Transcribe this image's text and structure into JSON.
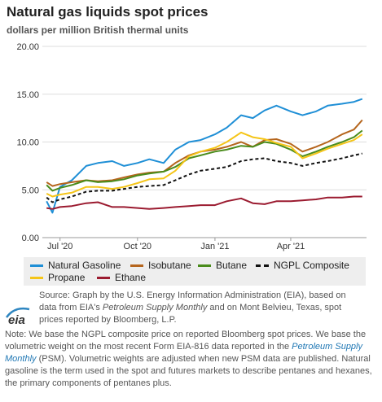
{
  "title": "Natural gas liquids spot prices",
  "subtitle": "dollars per million British thermal units",
  "chart_data": {
    "type": "line",
    "ylim": [
      0,
      20
    ],
    "yticks": [
      "0.00",
      "5.00",
      "10.00",
      "15.00",
      "20.00"
    ],
    "xticks": [
      {
        "label": "Jul '20",
        "x": "2020-07-01"
      },
      {
        "label": "Oct '20",
        "x": "2020-10-01"
      },
      {
        "label": "Jan '21",
        "x": "2021-01-01"
      },
      {
        "label": "Apr '21",
        "x": "2021-04-01"
      }
    ],
    "grid": "horizontal",
    "legend_position": "bottom",
    "series": [
      {
        "name": "Natural Gasoline",
        "color": "#1f8fd6",
        "dash": "solid",
        "points": [
          [
            "2020-06-15",
            3.8
          ],
          [
            "2020-06-22",
            2.6
          ],
          [
            "2020-07-01",
            5.3
          ],
          [
            "2020-07-15",
            6.0
          ],
          [
            "2020-08-01",
            7.5
          ],
          [
            "2020-08-15",
            7.8
          ],
          [
            "2020-09-01",
            8.0
          ],
          [
            "2020-09-15",
            7.5
          ],
          [
            "2020-10-01",
            7.8
          ],
          [
            "2020-10-15",
            8.2
          ],
          [
            "2020-11-01",
            7.8
          ],
          [
            "2020-11-15",
            9.2
          ],
          [
            "2020-12-01",
            10.0
          ],
          [
            "2020-12-15",
            10.2
          ],
          [
            "2021-01-01",
            10.8
          ],
          [
            "2021-01-15",
            11.5
          ],
          [
            "2021-02-01",
            12.8
          ],
          [
            "2021-02-15",
            12.5
          ],
          [
            "2021-03-01",
            13.3
          ],
          [
            "2021-03-15",
            13.8
          ],
          [
            "2021-04-01",
            13.2
          ],
          [
            "2021-04-15",
            12.8
          ],
          [
            "2021-05-01",
            13.2
          ],
          [
            "2021-05-15",
            13.8
          ],
          [
            "2021-06-01",
            14.0
          ],
          [
            "2021-06-15",
            14.2
          ],
          [
            "2021-06-25",
            14.5
          ]
        ]
      },
      {
        "name": "Isobutane",
        "color": "#b5651d",
        "dash": "solid",
        "points": [
          [
            "2020-06-15",
            5.8
          ],
          [
            "2020-06-22",
            5.4
          ],
          [
            "2020-07-01",
            5.6
          ],
          [
            "2020-07-15",
            5.8
          ],
          [
            "2020-08-01",
            6.0
          ],
          [
            "2020-08-15",
            5.9
          ],
          [
            "2020-09-01",
            6.0
          ],
          [
            "2020-09-15",
            6.3
          ],
          [
            "2020-10-01",
            6.6
          ],
          [
            "2020-10-15",
            6.8
          ],
          [
            "2020-11-01",
            6.9
          ],
          [
            "2020-11-15",
            7.8
          ],
          [
            "2020-12-01",
            8.6
          ],
          [
            "2020-12-15",
            9.0
          ],
          [
            "2021-01-01",
            9.2
          ],
          [
            "2021-01-15",
            9.5
          ],
          [
            "2021-02-01",
            10.0
          ],
          [
            "2021-02-15",
            9.5
          ],
          [
            "2021-03-01",
            10.2
          ],
          [
            "2021-03-15",
            10.3
          ],
          [
            "2021-04-01",
            9.8
          ],
          [
            "2021-04-15",
            9.0
          ],
          [
            "2021-05-01",
            9.5
          ],
          [
            "2021-05-15",
            10.0
          ],
          [
            "2021-06-01",
            10.8
          ],
          [
            "2021-06-15",
            11.3
          ],
          [
            "2021-06-25",
            12.3
          ]
        ]
      },
      {
        "name": "Butane",
        "color": "#4a8c1c",
        "dash": "solid",
        "points": [
          [
            "2020-06-15",
            5.5
          ],
          [
            "2020-06-22",
            4.9
          ],
          [
            "2020-07-01",
            5.2
          ],
          [
            "2020-07-15",
            5.5
          ],
          [
            "2020-08-01",
            6.0
          ],
          [
            "2020-08-15",
            5.8
          ],
          [
            "2020-09-01",
            5.9
          ],
          [
            "2020-09-15",
            6.1
          ],
          [
            "2020-10-01",
            6.5
          ],
          [
            "2020-10-15",
            6.7
          ],
          [
            "2020-11-01",
            6.9
          ],
          [
            "2020-11-15",
            7.4
          ],
          [
            "2020-12-01",
            8.3
          ],
          [
            "2020-12-15",
            8.6
          ],
          [
            "2021-01-01",
            9.0
          ],
          [
            "2021-01-15",
            9.2
          ],
          [
            "2021-02-01",
            9.6
          ],
          [
            "2021-02-15",
            9.5
          ],
          [
            "2021-03-01",
            10.0
          ],
          [
            "2021-03-15",
            9.8
          ],
          [
            "2021-04-01",
            9.2
          ],
          [
            "2021-04-15",
            8.5
          ],
          [
            "2021-05-01",
            9.0
          ],
          [
            "2021-05-15",
            9.5
          ],
          [
            "2021-06-01",
            10.0
          ],
          [
            "2021-06-15",
            10.5
          ],
          [
            "2021-06-25",
            11.2
          ]
        ]
      },
      {
        "name": "NGPL Composite",
        "color": "#111111",
        "dash": "dashed",
        "points": [
          [
            "2020-06-15",
            4.2
          ],
          [
            "2020-06-22",
            3.7
          ],
          [
            "2020-07-01",
            4.0
          ],
          [
            "2020-07-15",
            4.3
          ],
          [
            "2020-08-01",
            4.8
          ],
          [
            "2020-08-15",
            4.9
          ],
          [
            "2020-09-01",
            4.9
          ],
          [
            "2020-09-15",
            5.1
          ],
          [
            "2020-10-01",
            5.3
          ],
          [
            "2020-10-15",
            5.4
          ],
          [
            "2020-11-01",
            5.5
          ],
          [
            "2020-11-15",
            6.0
          ],
          [
            "2020-12-01",
            6.6
          ],
          [
            "2020-12-15",
            7.0
          ],
          [
            "2021-01-01",
            7.2
          ],
          [
            "2021-01-15",
            7.4
          ],
          [
            "2021-02-01",
            8.0
          ],
          [
            "2021-02-15",
            8.2
          ],
          [
            "2021-03-01",
            8.3
          ],
          [
            "2021-03-15",
            8.0
          ],
          [
            "2021-04-01",
            7.8
          ],
          [
            "2021-04-15",
            7.5
          ],
          [
            "2021-05-01",
            7.8
          ],
          [
            "2021-05-15",
            8.0
          ],
          [
            "2021-06-01",
            8.3
          ],
          [
            "2021-06-15",
            8.6
          ],
          [
            "2021-06-25",
            8.8
          ]
        ]
      },
      {
        "name": "Propane",
        "color": "#f5c518",
        "dash": "solid",
        "points": [
          [
            "2020-06-15",
            4.6
          ],
          [
            "2020-06-22",
            4.3
          ],
          [
            "2020-07-01",
            4.5
          ],
          [
            "2020-07-15",
            4.7
          ],
          [
            "2020-08-01",
            5.3
          ],
          [
            "2020-08-15",
            5.3
          ],
          [
            "2020-09-01",
            5.1
          ],
          [
            "2020-09-15",
            5.3
          ],
          [
            "2020-10-01",
            5.7
          ],
          [
            "2020-10-15",
            6.1
          ],
          [
            "2020-11-01",
            6.2
          ],
          [
            "2020-11-15",
            7.0
          ],
          [
            "2020-12-01",
            8.5
          ],
          [
            "2020-12-15",
            9.0
          ],
          [
            "2021-01-01",
            9.4
          ],
          [
            "2021-01-15",
            10.0
          ],
          [
            "2021-02-01",
            11.0
          ],
          [
            "2021-02-15",
            10.5
          ],
          [
            "2021-03-01",
            10.3
          ],
          [
            "2021-03-15",
            9.9
          ],
          [
            "2021-04-01",
            9.5
          ],
          [
            "2021-04-15",
            8.3
          ],
          [
            "2021-05-01",
            8.8
          ],
          [
            "2021-05-15",
            9.3
          ],
          [
            "2021-06-01",
            9.8
          ],
          [
            "2021-06-15",
            10.2
          ],
          [
            "2021-06-25",
            10.8
          ]
        ]
      },
      {
        "name": "Ethane",
        "color": "#9b1b30",
        "dash": "solid",
        "points": [
          [
            "2020-06-15",
            3.1
          ],
          [
            "2020-06-22",
            3.0
          ],
          [
            "2020-07-01",
            3.2
          ],
          [
            "2020-07-15",
            3.3
          ],
          [
            "2020-08-01",
            3.6
          ],
          [
            "2020-08-15",
            3.7
          ],
          [
            "2020-09-01",
            3.2
          ],
          [
            "2020-09-15",
            3.2
          ],
          [
            "2020-10-01",
            3.1
          ],
          [
            "2020-10-15",
            3.0
          ],
          [
            "2020-11-01",
            3.1
          ],
          [
            "2020-11-15",
            3.2
          ],
          [
            "2020-12-01",
            3.3
          ],
          [
            "2020-12-15",
            3.4
          ],
          [
            "2021-01-01",
            3.4
          ],
          [
            "2021-01-15",
            3.8
          ],
          [
            "2021-02-01",
            4.1
          ],
          [
            "2021-02-15",
            3.6
          ],
          [
            "2021-03-01",
            3.5
          ],
          [
            "2021-03-15",
            3.8
          ],
          [
            "2021-04-01",
            3.8
          ],
          [
            "2021-04-15",
            3.9
          ],
          [
            "2021-05-01",
            4.0
          ],
          [
            "2021-05-15",
            4.2
          ],
          [
            "2021-06-01",
            4.2
          ],
          [
            "2021-06-15",
            4.3
          ],
          [
            "2021-06-25",
            4.3
          ]
        ]
      }
    ]
  },
  "legend": {
    "natural_gasoline": "Natural Gasoline",
    "isobutane": "Isobutane",
    "butane": "Butane",
    "ngpl": "NGPL Composite",
    "propane": "Propane",
    "ethane": "Ethane"
  },
  "colors": {
    "natural_gasoline": "#1f8fd6",
    "isobutane": "#b5651d",
    "butane": "#4a8c1c",
    "ngpl": "#111111",
    "propane": "#f5c518",
    "ethane": "#9b1b30"
  },
  "source": {
    "part1": "Source: Graph by the U.S. Energy Information Administration (EIA), based on data from EIA's ",
    "psm": "Petroleum Supply Monthly",
    "part2": " and on Mont Belvieu, Texas, spot prices reported by Bloomberg, L.P."
  },
  "logo_text": "eia",
  "note": {
    "part1": "Note: We base the NGPL composite price on reported Bloomberg spot prices. We base the volumetric weight on the most recent Form EIA-816 data reported in the ",
    "psm_link": "Petroleum Supply Monthly",
    "part2": " (PSM). Volumetric weights are adjusted when new PSM data are published. Natural gasoline is the term used in the spot and futures markets to describe pentanes and hexanes, the primary components of pentanes plus."
  }
}
